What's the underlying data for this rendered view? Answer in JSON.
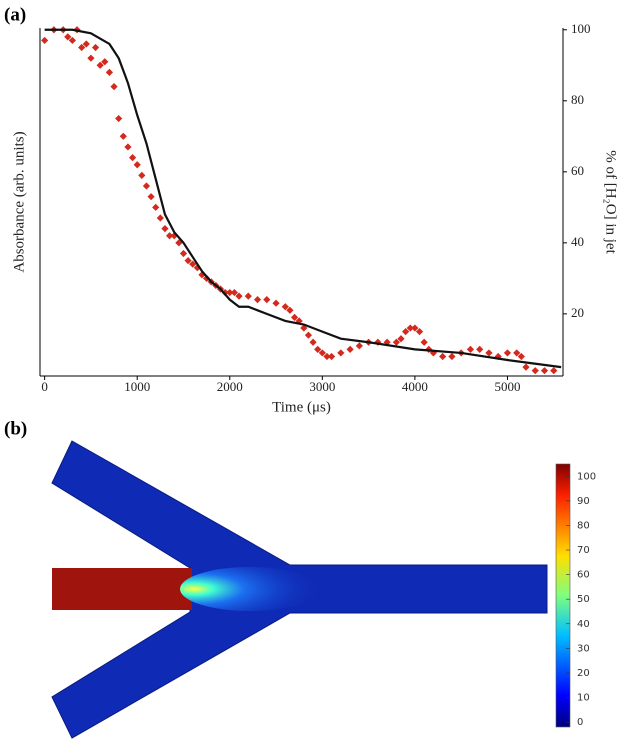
{
  "panel_labels": [
    "(a)",
    "(b)"
  ],
  "chart_data": [
    {
      "type": "line",
      "xlabel": "Time (μs)",
      "ylabel": "Absorbance (arb. units)",
      "y2label": "% of [H₂O] in jet",
      "xlim": [
        -50,
        5600
      ],
      "xticks": [
        0,
        1000,
        2000,
        3000,
        4000,
        5000
      ],
      "y2lim": [
        2.5,
        100.5
      ],
      "y2ticks": [
        20,
        40,
        60,
        80,
        100
      ],
      "series": [
        {
          "type": "scatter",
          "color": "#d42a1e",
          "axis": "y2",
          "x": [
            0,
            100,
            200,
            250,
            300,
            350,
            400,
            450,
            500,
            550,
            600,
            650,
            700,
            750,
            800,
            850,
            900,
            950,
            1000,
            1050,
            1100,
            1150,
            1200,
            1250,
            1300,
            1350,
            1400,
            1450,
            1500,
            1550,
            1600,
            1650,
            1700,
            1750,
            1800,
            1850,
            1900,
            1950,
            2000,
            2050,
            2100,
            2200,
            2300,
            2400,
            2500,
            2600,
            2650,
            2700,
            2750,
            2800,
            2850,
            2900,
            2950,
            3000,
            3050,
            3100,
            3200,
            3300,
            3400,
            3500,
            3600,
            3700,
            3800,
            3850,
            3900,
            3950,
            4000,
            4050,
            4100,
            4150,
            4200,
            4300,
            4400,
            4500,
            4600,
            4700,
            4800,
            4900,
            5000,
            5100,
            5150,
            5200,
            5300,
            5400,
            5500
          ],
          "values": [
            97,
            100,
            100,
            98,
            97,
            100,
            95,
            96,
            92,
            95,
            90,
            91,
            88,
            84,
            75,
            70,
            67,
            64,
            62,
            59,
            56,
            53,
            50,
            47,
            44,
            42,
            42,
            40,
            37,
            35,
            34,
            33,
            31,
            30,
            29,
            28,
            27,
            26,
            26,
            26,
            25,
            25,
            24,
            24,
            23,
            22,
            21,
            19,
            18,
            16,
            14,
            12,
            10,
            9,
            8,
            8,
            9,
            10,
            11,
            12,
            12,
            12,
            12,
            13,
            15,
            16,
            16,
            15,
            12,
            10,
            9,
            8,
            8,
            9,
            10,
            10,
            9,
            8,
            9,
            9,
            8,
            5,
            4,
            4,
            4
          ]
        },
        {
          "type": "line",
          "color": "#111111",
          "axis": "y2",
          "x": [
            0,
            300,
            500,
            700,
            800,
            900,
            1000,
            1100,
            1200,
            1300,
            1400,
            1500,
            1600,
            1700,
            1800,
            1900,
            2000,
            2100,
            2200,
            2300,
            2400,
            2600,
            2800,
            3000,
            3200,
            3500,
            4000,
            4500,
            5000,
            5580
          ],
          "values": [
            100,
            100,
            99,
            96,
            92,
            85,
            76,
            68,
            58,
            48,
            43,
            40,
            36,
            32,
            29,
            27,
            24,
            22,
            22,
            21,
            20,
            18,
            17,
            15,
            13,
            12,
            10,
            9,
            7,
            5
          ]
        }
      ]
    },
    {
      "type": "heatmap",
      "clim": [
        -2,
        105
      ],
      "colorbar_ticks": [
        0,
        10,
        20,
        30,
        40,
        50,
        60,
        70,
        80,
        90,
        100
      ]
    }
  ]
}
